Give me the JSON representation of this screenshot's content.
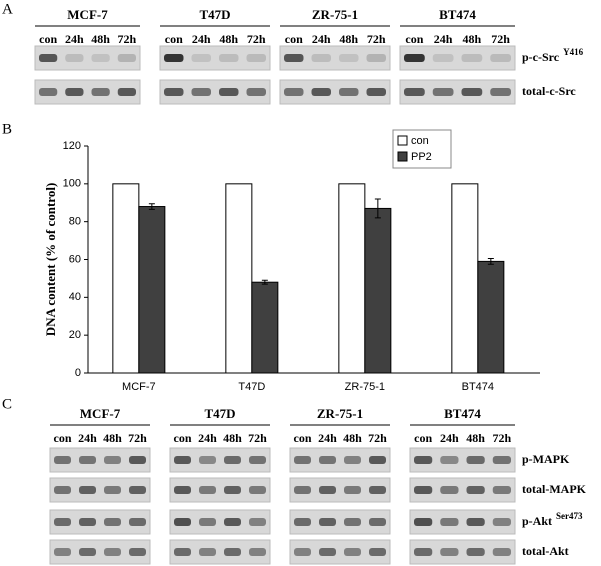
{
  "panels": {
    "A": {
      "label": "A",
      "cell_lines": [
        "MCF-7",
        "T47D",
        "ZR-75-1",
        "BT474"
      ],
      "lanes": [
        "con",
        "24h",
        "48h",
        "72h"
      ],
      "rows": [
        {
          "name": "p-c-Src",
          "sup": "Y416"
        },
        {
          "name": "total-c-Src"
        }
      ]
    },
    "B": {
      "label": "B"
    },
    "C": {
      "label": "C",
      "cell_lines": [
        "MCF-7",
        "T47D",
        "ZR-75-1",
        "BT474"
      ],
      "lanes": [
        "con",
        "24h",
        "48h",
        "72h"
      ],
      "rows": [
        {
          "name": "p-MAPK"
        },
        {
          "name": "total-MAPK"
        },
        {
          "name": "p-Akt",
          "sup": "Ser473"
        },
        {
          "name": "total-Akt"
        }
      ]
    }
  },
  "chart_data": {
    "type": "bar",
    "y_label": "DNA content (% of control)",
    "categories": [
      "MCF-7",
      "T47D",
      "ZR-75-1",
      "BT474"
    ],
    "series": [
      {
        "name": "con",
        "color": "#ffffff",
        "values": [
          100,
          100,
          100,
          100
        ]
      },
      {
        "name": "PP2",
        "color": "#404040",
        "values": [
          88,
          48,
          87,
          59
        ],
        "errors": [
          1.5,
          1,
          5,
          1.5
        ]
      }
    ],
    "ylim": [
      0,
      120
    ],
    "yticks": [
      0,
      20,
      40,
      60,
      80,
      100,
      120
    ],
    "legend": "upper right"
  }
}
